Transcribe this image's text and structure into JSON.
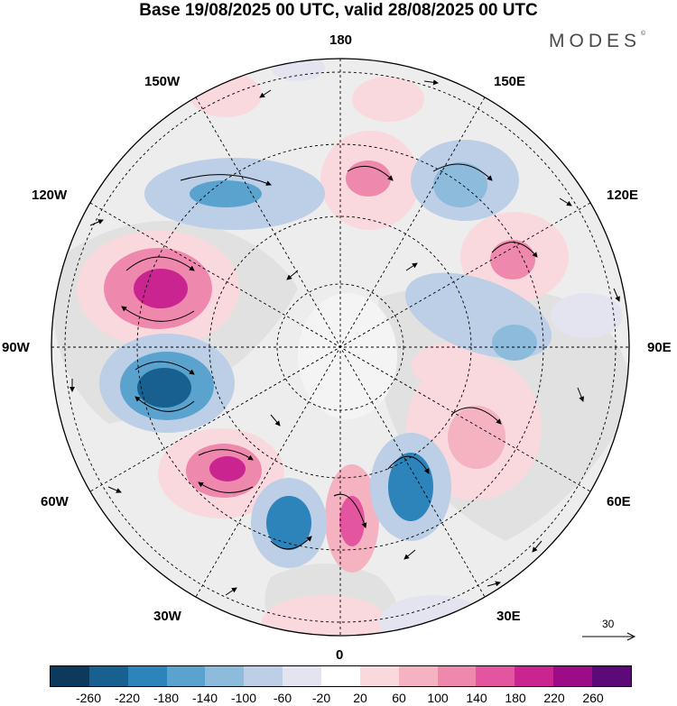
{
  "title": "Base 19/08/2025 00 UTC, valid 28/08/2025 00 UTC",
  "logo": "MODES",
  "logo_mark": "©",
  "longitude_labels": {
    "top": "180",
    "bottom": "0",
    "left": "90W",
    "right": "90E",
    "ul_150w": "150W",
    "ur_150e": "150E",
    "ul_120w": "120W",
    "ur_120e": "120E",
    "ll_60w": "60W",
    "lr_60e": "60E",
    "ll_30w": "30W",
    "lr_30e": "30E"
  },
  "vector_reference": {
    "label": "30"
  },
  "colorbar": {
    "colors": [
      "#0d3a5c",
      "#17608f",
      "#2c84bb",
      "#5aa3cf",
      "#8cbbdc",
      "#bccfe6",
      "#e4e4f0",
      "#ffffff",
      "#f9d9dd",
      "#f5b3c2",
      "#ee88ad",
      "#e455a0",
      "#c92490",
      "#9c0c86",
      "#5c0a78"
    ],
    "tick_labels": [
      "-260",
      "-220",
      "-180",
      "-140",
      "-100",
      "-60",
      "-20",
      "20",
      "60",
      "100",
      "140",
      "180",
      "220",
      "260"
    ]
  },
  "anomaly_colors": {
    "neg_strong": "#17608f",
    "neg_mid": "#5aa3cf",
    "neg_light": "#bccfe6",
    "pos_light": "#f9d9dd",
    "pos_mid": "#ee88ad",
    "pos_strong": "#c92490",
    "neutral": "#e9e9ea"
  }
}
